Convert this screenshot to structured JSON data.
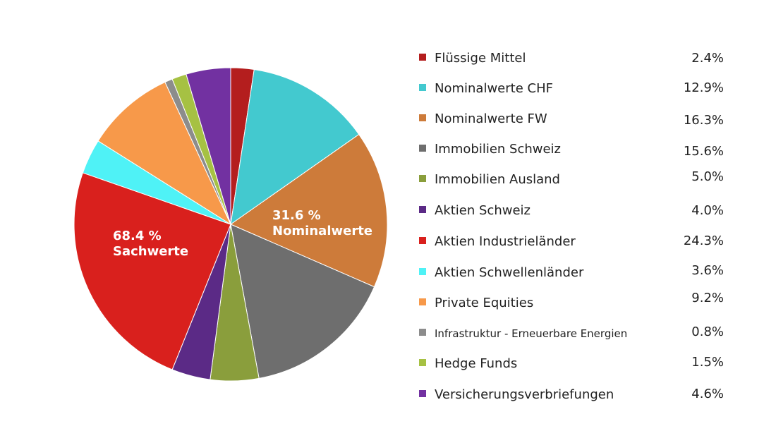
{
  "chart_data": {
    "type": "pie",
    "slices": [
      {
        "label": "Flüssige Mittel",
        "value": 2.4,
        "display": "2.4%",
        "color": "#b41e1e"
      },
      {
        "label": "Nominalwerte CHF",
        "value": 12.9,
        "display": "12.9%",
        "color": "#43c9cf"
      },
      {
        "label": "Nominalwerte FW",
        "value": 16.3,
        "display": "16.3%",
        "color": "#cd7b3a"
      },
      {
        "label": "Immobilien Schweiz",
        "value": 15.6,
        "display": "15.6%",
        "color": "#6e6e6e"
      },
      {
        "label": "Immobilien Ausland",
        "value": 5.0,
        "display": "5.0%",
        "color": "#8a9e3c"
      },
      {
        "label": "Aktien Schweiz",
        "value": 4.0,
        "display": "4.0%",
        "color": "#5b2a86"
      },
      {
        "label": "Aktien Industrieländer",
        "value": 24.3,
        "display": "24.3%",
        "color": "#d9201d"
      },
      {
        "label": "Aktien Schwellenländer",
        "value": 3.6,
        "display": "3.6%",
        "color": "#4ff2f6"
      },
      {
        "label": "Private Equities",
        "value": 9.2,
        "display": "9.2%",
        "color": "#f7994a"
      },
      {
        "label": "Infrastruktur - Erneuerbare Energien",
        "value": 0.8,
        "display": "0.8%",
        "color": "#8c8c8c"
      },
      {
        "label": "Hedge Funds",
        "value": 1.5,
        "display": "1.5%",
        "color": "#a6c143"
      },
      {
        "label": "Versicherungsverbriefungen",
        "value": 4.6,
        "display": "4.6%",
        "color": "#7231a1"
      }
    ],
    "annotations": [
      {
        "line1": "31.6 %",
        "line2": "Nominalwerte"
      },
      {
        "line1": "68.4 %",
        "line2": "Sachwerte"
      }
    ],
    "legend_position": "right"
  }
}
